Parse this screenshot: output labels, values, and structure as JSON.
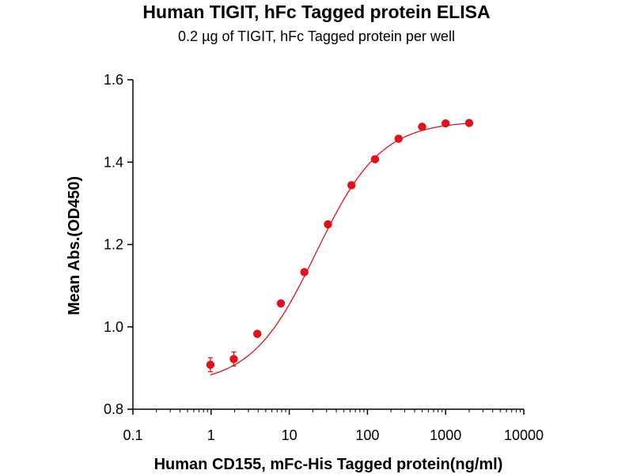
{
  "chart_data": {
    "type": "scatter",
    "title": "Human TIGIT, hFc Tagged protein ELISA",
    "subtitle": "0.2 µg of TIGIT, hFc Tagged protein per well",
    "xlabel": "Human CD155, mFc-His Tagged protein(ng/ml)",
    "ylabel": "Mean Abs.(OD450)",
    "xscale": "log",
    "xlim": [
      0.1,
      10000
    ],
    "ylim": [
      0.8,
      1.6
    ],
    "x_ticks": [
      0.1,
      1,
      10,
      100,
      1000,
      10000
    ],
    "x_tick_labels": [
      "0.1",
      "1",
      "10",
      "100",
      "1000",
      "10000"
    ],
    "y_ticks": [
      0.8,
      1.0,
      1.2,
      1.4,
      1.6
    ],
    "y_tick_labels": [
      "0.8",
      "1.0",
      "1.2",
      "1.4",
      "1.6"
    ],
    "grid": false,
    "color": "#e3101a",
    "series": [
      {
        "x": [
          0.98,
          1.95,
          3.9,
          7.8,
          15.6,
          31.25,
          62.5,
          125,
          250,
          500,
          1000,
          2000
        ],
        "y": [
          0.908,
          0.922,
          0.983,
          1.057,
          1.133,
          1.249,
          1.344,
          1.407,
          1.457,
          1.486,
          1.494,
          1.495
        ],
        "error": [
          0.017,
          0.017,
          0.006,
          0.006,
          0.006,
          0.006,
          0.006,
          0.006,
          0.006,
          0.006,
          0.006,
          0.006
        ]
      }
    ]
  }
}
